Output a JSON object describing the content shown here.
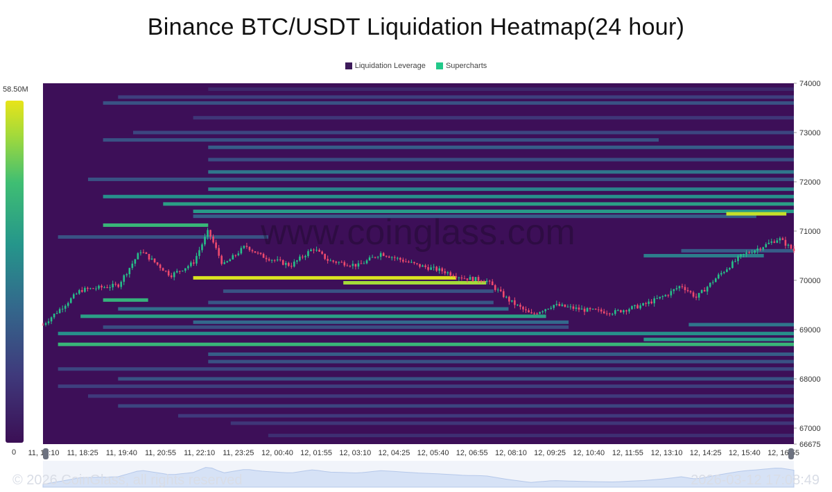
{
  "title": "Binance BTC/USDT Liquidation Heatmap(24 hour)",
  "legend": [
    {
      "label": "Liquidation Leverage",
      "color": "#3d1a5a"
    },
    {
      "label": "Supercharts",
      "color": "#22c98a"
    }
  ],
  "colorbar": {
    "max_label": "58.50M",
    "min_label": "0"
  },
  "watermark": "www.coinglass.com",
  "footer": {
    "copyright": "© 2026 CoinGlass, all rights reserved",
    "timestamp": "2026-03-12 17:08:49"
  },
  "chart_data": {
    "type": "heatmap",
    "title": "Binance BTC/USDT Liquidation Heatmap(24 hour)",
    "x_tick_labels": [
      "11, 17:10",
      "11, 18:25",
      "11, 19:40",
      "11, 20:55",
      "11, 22:10",
      "11, 23:25",
      "12, 00:40",
      "12, 01:55",
      "12, 03:10",
      "12, 04:25",
      "12, 05:40",
      "12, 06:55",
      "12, 08:10",
      "12, 09:25",
      "12, 10:40",
      "12, 11:55",
      "12, 13:10",
      "12, 14:25",
      "12, 15:40",
      "12, 16:55"
    ],
    "y_tick_labels": [
      "74000",
      "73000",
      "72000",
      "71000",
      "70000",
      "69000",
      "68000",
      "67000",
      "66675"
    ],
    "y_ticks": [
      74000,
      73000,
      72000,
      71000,
      70000,
      69000,
      68000,
      67000,
      66675
    ],
    "ylim": [
      66675,
      74000
    ],
    "colorscale": {
      "min": 0,
      "max": 58500000,
      "max_label": "58.50M",
      "min_label": "0"
    },
    "price_path": [
      [
        0,
        69100
      ],
      [
        0.05,
        69800
      ],
      [
        0.1,
        69900
      ],
      [
        0.13,
        70600
      ],
      [
        0.17,
        70100
      ],
      [
        0.2,
        70350
      ],
      [
        0.22,
        71000
      ],
      [
        0.24,
        70300
      ],
      [
        0.27,
        70700
      ],
      [
        0.29,
        70500
      ],
      [
        0.33,
        70300
      ],
      [
        0.36,
        70650
      ],
      [
        0.38,
        70400
      ],
      [
        0.42,
        70300
      ],
      [
        0.45,
        70550
      ],
      [
        0.48,
        70400
      ],
      [
        0.5,
        70300
      ],
      [
        0.53,
        70200
      ],
      [
        0.56,
        70050
      ],
      [
        0.59,
        70000
      ],
      [
        0.62,
        69600
      ],
      [
        0.65,
        69300
      ],
      [
        0.68,
        69500
      ],
      [
        0.72,
        69400
      ],
      [
        0.76,
        69350
      ],
      [
        0.8,
        69500
      ],
      [
        0.83,
        69700
      ],
      [
        0.85,
        69900
      ],
      [
        0.87,
        69650
      ],
      [
        0.9,
        70100
      ],
      [
        0.93,
        70500
      ],
      [
        0.96,
        70700
      ],
      [
        0.98,
        70850
      ],
      [
        1.0,
        70600
      ]
    ],
    "bands": [
      {
        "price": 73880,
        "start": 0.22,
        "end": 1.0,
        "value": 0.12
      },
      {
        "price": 73720,
        "start": 0.1,
        "end": 1.0,
        "value": 0.22
      },
      {
        "price": 73600,
        "start": 0.08,
        "end": 1.0,
        "value": 0.3
      },
      {
        "price": 73300,
        "start": 0.2,
        "end": 1.0,
        "value": 0.18
      },
      {
        "price": 73000,
        "start": 0.12,
        "end": 1.0,
        "value": 0.25
      },
      {
        "price": 72850,
        "start": 0.08,
        "end": 0.82,
        "value": 0.3
      },
      {
        "price": 72700,
        "start": 0.22,
        "end": 1.0,
        "value": 0.35
      },
      {
        "price": 72450,
        "start": 0.22,
        "end": 1.0,
        "value": 0.28
      },
      {
        "price": 72200,
        "start": 0.22,
        "end": 1.0,
        "value": 0.45
      },
      {
        "price": 72050,
        "start": 0.06,
        "end": 1.0,
        "value": 0.3
      },
      {
        "price": 71850,
        "start": 0.22,
        "end": 1.0,
        "value": 0.5
      },
      {
        "price": 71700,
        "start": 0.08,
        "end": 1.0,
        "value": 0.55
      },
      {
        "price": 71550,
        "start": 0.16,
        "end": 1.0,
        "value": 0.62
      },
      {
        "price": 71400,
        "start": 0.2,
        "end": 1.0,
        "value": 0.6
      },
      {
        "price": 71300,
        "start": 0.2,
        "end": 0.95,
        "value": 0.35
      },
      {
        "price": 71120,
        "start": 0.08,
        "end": 0.22,
        "value": 0.72
      },
      {
        "price": 71350,
        "start": 0.91,
        "end": 0.99,
        "value": 0.95
      },
      {
        "price": 70880,
        "start": 0.02,
        "end": 0.3,
        "value": 0.3
      },
      {
        "price": 70600,
        "start": 0.85,
        "end": 1.0,
        "value": 0.35
      },
      {
        "price": 70500,
        "start": 0.8,
        "end": 0.96,
        "value": 0.48
      },
      {
        "price": 70050,
        "start": 0.2,
        "end": 0.55,
        "value": 0.98
      },
      {
        "price": 69950,
        "start": 0.4,
        "end": 0.59,
        "value": 0.9
      },
      {
        "price": 69780,
        "start": 0.24,
        "end": 0.6,
        "value": 0.3
      },
      {
        "price": 69600,
        "start": 0.08,
        "end": 0.14,
        "value": 0.7
      },
      {
        "price": 69550,
        "start": 0.22,
        "end": 0.6,
        "value": 0.32
      },
      {
        "price": 69420,
        "start": 0.1,
        "end": 0.62,
        "value": 0.42
      },
      {
        "price": 69270,
        "start": 0.05,
        "end": 0.67,
        "value": 0.62
      },
      {
        "price": 69150,
        "start": 0.2,
        "end": 0.7,
        "value": 0.4
      },
      {
        "price": 69100,
        "start": 0.86,
        "end": 1.0,
        "value": 0.45
      },
      {
        "price": 69050,
        "start": 0.08,
        "end": 0.7,
        "value": 0.28
      },
      {
        "price": 68920,
        "start": 0.02,
        "end": 1.0,
        "value": 0.55
      },
      {
        "price": 68800,
        "start": 0.8,
        "end": 1.0,
        "value": 0.6
      },
      {
        "price": 68700,
        "start": 0.02,
        "end": 1.0,
        "value": 0.72
      },
      {
        "price": 68500,
        "start": 0.22,
        "end": 1.0,
        "value": 0.35
      },
      {
        "price": 68350,
        "start": 0.22,
        "end": 1.0,
        "value": 0.3
      },
      {
        "price": 68200,
        "start": 0.02,
        "end": 1.0,
        "value": 0.25
      },
      {
        "price": 68000,
        "start": 0.1,
        "end": 1.0,
        "value": 0.3
      },
      {
        "price": 67850,
        "start": 0.02,
        "end": 1.0,
        "value": 0.22
      },
      {
        "price": 67650,
        "start": 0.06,
        "end": 1.0,
        "value": 0.2
      },
      {
        "price": 67450,
        "start": 0.1,
        "end": 1.0,
        "value": 0.25
      },
      {
        "price": 67250,
        "start": 0.18,
        "end": 1.0,
        "value": 0.2
      },
      {
        "price": 67100,
        "start": 0.25,
        "end": 1.0,
        "value": 0.18
      },
      {
        "price": 66850,
        "start": 0.3,
        "end": 1.0,
        "value": 0.15
      }
    ]
  }
}
